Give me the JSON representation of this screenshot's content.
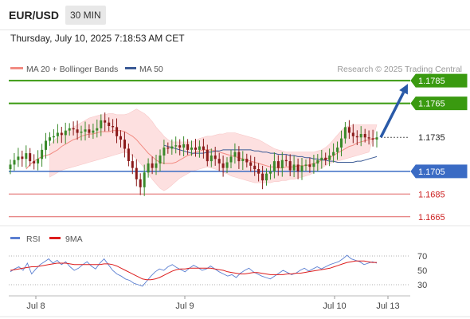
{
  "header": {
    "symbol": "EUR/USD",
    "timeframe": "30 MIN",
    "timestamp": "Thursday, July 10, 2025 7:18:53 AM CET"
  },
  "legend": {
    "ma20_label": "MA 20 + Bollinger Bands",
    "ma50_label": "MA 50",
    "ma20_color": "#f28b82",
    "ma50_color": "#3a5a95",
    "credit": "Research © 2025 Trading Central"
  },
  "rsi_legend": {
    "rsi_label": "RSI",
    "ma_label": "9MA",
    "rsi_color": "#5b7fd1",
    "ma_color": "#dd1d1d"
  },
  "colors": {
    "green_level": "#3a9a10",
    "blue_level": "#3a6bc4",
    "red_level": "#e06060",
    "arrow": "#2a5aa8",
    "up_candle": "#3a8a2a",
    "down_candle": "#8a1a1a",
    "band_fill": "#fde0e0"
  },
  "chart_data": {
    "type": "candlestick",
    "instrument": "EUR/USD",
    "interval": "30 MIN",
    "ylim": [
      1.1655,
      1.179
    ],
    "x_ticks": [
      "Jul 8",
      "Jul 9",
      "Jul 10",
      "Jul 13"
    ],
    "levels": [
      {
        "value": 1.1785,
        "label": "1.1785",
        "kind": "resistance"
      },
      {
        "value": 1.1765,
        "label": "1.1765",
        "kind": "resistance"
      },
      {
        "value": 1.1735,
        "label": "1.1735",
        "kind": "current"
      },
      {
        "value": 1.1705,
        "label": "1.1705",
        "kind": "pivot"
      },
      {
        "value": 1.1685,
        "label": "1.1685",
        "kind": "support"
      },
      {
        "value": 1.1665,
        "label": "1.1665",
        "kind": "support"
      }
    ],
    "closes": [
      1.1711,
      1.1715,
      1.1718,
      1.1716,
      1.1721,
      1.1714,
      1.1712,
      1.1716,
      1.1724,
      1.1732,
      1.1735,
      1.1736,
      1.1739,
      1.1737,
      1.1741,
      1.1743,
      1.1742,
      1.1739,
      1.174,
      1.1742,
      1.1739,
      1.1741,
      1.1743,
      1.175,
      1.1748,
      1.1745,
      1.1744,
      1.1736,
      1.1733,
      1.1725,
      1.1714,
      1.1708,
      1.1698,
      1.1691,
      1.1704,
      1.1712,
      1.1708,
      1.1712,
      1.1719,
      1.1726,
      1.1725,
      1.1727,
      1.1728,
      1.1726,
      1.1729,
      1.1724,
      1.1726,
      1.1724,
      1.1727,
      1.1724,
      1.1714,
      1.1719,
      1.1716,
      1.1712,
      1.1708,
      1.1713,
      1.1718,
      1.1722,
      1.1714,
      1.1716,
      1.1713,
      1.171,
      1.1707,
      1.1703,
      1.1697,
      1.1703,
      1.1705,
      1.1714,
      1.1708,
      1.1715,
      1.1714,
      1.1706,
      1.1711,
      1.1705,
      1.171,
      1.1711,
      1.1709,
      1.1712,
      1.1715,
      1.1717,
      1.1715,
      1.1719,
      1.1722,
      1.1726,
      1.1734,
      1.1744,
      1.1739,
      1.1736,
      1.1735,
      1.1738,
      1.1735,
      1.1734,
      1.1733,
      1.1735
    ],
    "ma20": [
      1.1707,
      1.1711,
      1.1714,
      1.1716,
      1.1718,
      1.1719,
      1.172,
      1.1722,
      1.1724,
      1.1727,
      1.1729,
      1.1731,
      1.1733,
      1.1734,
      1.1736,
      1.1737,
      1.1738,
      1.1738,
      1.1739,
      1.174,
      1.174,
      1.174,
      1.1741,
      1.1741,
      1.1741,
      1.174,
      1.1738,
      1.1736,
      1.1733,
      1.1729,
      1.1725,
      1.1721,
      1.1718,
      1.1715,
      1.1713,
      1.1712,
      1.1712,
      1.1712,
      1.1713,
      1.1715,
      1.1717,
      1.1719,
      1.172,
      1.1722,
      1.1723,
      1.1724,
      1.1724,
      1.1724,
      1.1723,
      1.1722,
      1.1721,
      1.172,
      1.1719,
      1.1718,
      1.1717,
      1.1716,
      1.1715,
      1.1714,
      1.1713,
      1.1712,
      1.1711,
      1.171,
      1.1709,
      1.1709,
      1.1708,
      1.1708,
      1.1709,
      1.1709,
      1.1709,
      1.171,
      1.171,
      1.171,
      1.1711,
      1.1712,
      1.1713,
      1.1715,
      1.1716,
      1.1717,
      1.1719,
      1.1721,
      1.1723,
      1.1725,
      1.1727,
      1.1728,
      1.173,
      1.1731,
      1.1732,
      1.1733,
      1.1734,
      1.1734
    ],
    "bb_upper": [
      1.1728,
      1.1732,
      1.1735,
      1.1737,
      1.174,
      1.1742,
      1.1744,
      1.1746,
      1.1748,
      1.175,
      1.1752,
      1.1753,
      1.1754,
      1.1755,
      1.1755,
      1.1756,
      1.1756,
      1.1755,
      1.1755,
      1.1755,
      1.1756,
      1.1758,
      1.176,
      1.1758,
      1.1756,
      1.1753,
      1.1749,
      1.1744,
      1.174,
      1.1736,
      1.1733,
      1.1731,
      1.1731,
      1.1731,
      1.1731,
      1.1731,
      1.1731,
      1.1732,
      1.1734,
      1.1735,
      1.1736,
      1.1736,
      1.1737,
      1.1738,
      1.1738,
      1.1739,
      1.1739,
      1.1739,
      1.1738,
      1.1737,
      1.1736,
      1.1735,
      1.1734,
      1.1733,
      1.1731,
      1.1729,
      1.1727,
      1.1725,
      1.1724,
      1.1723,
      1.1722,
      1.1722,
      1.1722,
      1.1722,
      1.1722,
      1.1722,
      1.1722,
      1.1722,
      1.1723,
      1.1724,
      1.1726,
      1.1729,
      1.1733,
      1.1737,
      1.1741,
      1.1744,
      1.1745,
      1.1746,
      1.1746,
      1.1746,
      1.1746,
      1.1746,
      1.1746,
      1.1746
    ],
    "bb_lower": [
      1.17,
      1.1702,
      1.1704,
      1.1706,
      1.1707,
      1.1708,
      1.1709,
      1.171,
      1.1711,
      1.1712,
      1.1713,
      1.1714,
      1.1715,
      1.1716,
      1.1717,
      1.1718,
      1.1719,
      1.172,
      1.1721,
      1.1722,
      1.1721,
      1.1719,
      1.1716,
      1.1712,
      1.1708,
      1.1703,
      1.1698,
      1.1694,
      1.169,
      1.1688,
      1.169,
      1.1693,
      1.1696,
      1.1699,
      1.1701,
      1.1703,
      1.1705,
      1.1706,
      1.1707,
      1.1708,
      1.1709,
      1.1708,
      1.1707,
      1.1706,
      1.1704,
      1.1703,
      1.1701,
      1.17,
      1.1699,
      1.1698,
      1.1697,
      1.1696,
      1.1695,
      1.1695,
      1.1695,
      1.1695,
      1.1695,
      1.1696,
      1.1696,
      1.1697,
      1.1697,
      1.1698,
      1.1698,
      1.1699,
      1.17,
      1.1701,
      1.1702,
      1.1704,
      1.1706,
      1.1708,
      1.171,
      1.1712,
      1.1713,
      1.1714,
      1.1715,
      1.1716,
      1.1717,
      1.1718,
      1.1719,
      1.172,
      1.1721,
      1.1722
    ],
    "ma50": [
      1.1728,
      1.1727,
      1.1726,
      1.1725,
      1.1724,
      1.1723,
      1.1722,
      1.1721,
      1.1721,
      1.1721,
      1.1721,
      1.1722,
      1.1722,
      1.1723,
      1.1723,
      1.1724,
      1.1724,
      1.1724,
      1.1724,
      1.1724,
      1.1724,
      1.1724,
      1.1724,
      1.1723,
      1.1723,
      1.1722,
      1.1722,
      1.1721,
      1.1721,
      1.172,
      1.172,
      1.172,
      1.1719,
      1.1719,
      1.1718,
      1.1718,
      1.1717,
      1.1717,
      1.1716,
      1.1716,
      1.1715,
      1.1715,
      1.1714,
      1.1714,
      1.1713,
      1.1713,
      1.1713,
      1.1713,
      1.1713,
      1.1714,
      1.1714,
      1.1715,
      1.1716,
      1.1717,
      1.1718
    ],
    "rsi": {
      "ylim": [
        20,
        80
      ],
      "ticks": [
        70,
        50,
        30
      ],
      "rsi_values": [
        48,
        52,
        55,
        50,
        60,
        45,
        52,
        58,
        62,
        66,
        60,
        64,
        58,
        62,
        55,
        50,
        53,
        58,
        62,
        56,
        52,
        60,
        66,
        58,
        50,
        45,
        42,
        38,
        36,
        32,
        30,
        28,
        35,
        42,
        48,
        52,
        50,
        55,
        58,
        54,
        51,
        48,
        53,
        57,
        54,
        50,
        52,
        56,
        52,
        48,
        45,
        42,
        44,
        40,
        46,
        50,
        53,
        48,
        45,
        42,
        40,
        38,
        42,
        46,
        50,
        47,
        44,
        46,
        50,
        53,
        49,
        52,
        55,
        52,
        55,
        58,
        60,
        62,
        66,
        71,
        66,
        64,
        62,
        58,
        60,
        62,
        60
      ],
      "ma_values": [
        50,
        51,
        52,
        53,
        54,
        55,
        55,
        56,
        57,
        58,
        59,
        60,
        60,
        60,
        59,
        58,
        58,
        58,
        58,
        58,
        58,
        58,
        59,
        59,
        58,
        56,
        53,
        50,
        47,
        44,
        41,
        38,
        37,
        37,
        38,
        40,
        43,
        46,
        49,
        51,
        52,
        52,
        53,
        53,
        53,
        53,
        53,
        53,
        52,
        51,
        50,
        48,
        47,
        46,
        45,
        45,
        46,
        47,
        47,
        46,
        45,
        44,
        44,
        44,
        44,
        45,
        45,
        46,
        46,
        47,
        48,
        49,
        50,
        51,
        52,
        53,
        55,
        57,
        59,
        61,
        62,
        63,
        63,
        63,
        62,
        61,
        61
      ]
    }
  }
}
